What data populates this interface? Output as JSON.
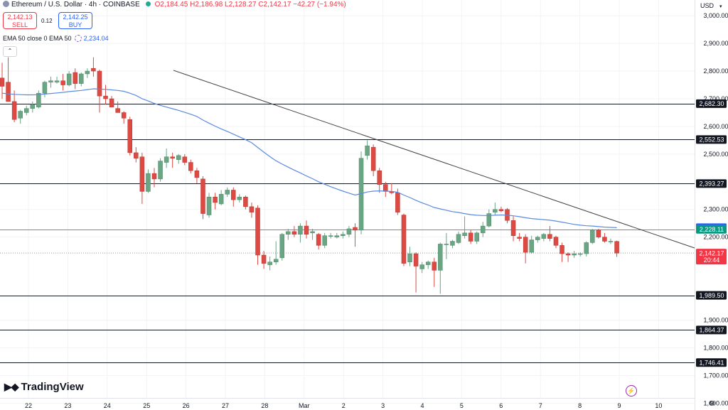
{
  "header": {
    "symbol": "Ethereum / U.S. Dollar · 4h · COINBASE",
    "ohlc": "O2,184.45 H2,186.98 L2,128.27 C2,142.17 −42.27 (−1.94%)"
  },
  "trade": {
    "sell_price": "2,142.13",
    "sell_label": "SELL",
    "spread": "0.12",
    "buy_price": "2,142.25",
    "buy_label": "BUY"
  },
  "indicator": {
    "label": "EMA 50 close 0 EMA 50",
    "value": "2,234.04"
  },
  "collapse_glyph": "⌃",
  "currency": "USD",
  "logo_text": "TradingView",
  "colors": {
    "up": "#6aa584",
    "down": "#dc4a43",
    "ema": "#5b8be0",
    "trend": "#444444",
    "green_line": "#4caf50",
    "level": "#131722"
  },
  "chart_data": {
    "type": "candlestick",
    "symbol": "ETHUSD",
    "timeframe": "4h",
    "x_labels": [
      "22",
      "23",
      "24",
      "25",
      "26",
      "27",
      "28",
      "Mar",
      "2",
      "3",
      "4",
      "5",
      "6",
      "7",
      "8",
      "9",
      "10"
    ],
    "y_ticks": [
      "3,000.00",
      "2,900.00",
      "2,800.00",
      "2,700.00",
      "2,600.00",
      "2,500.00",
      "2,300.00",
      "2,200.00",
      "1,900.00",
      "1,800.00",
      "1,700.00",
      "1,600.00"
    ],
    "ylim": [
      1575,
      3057
    ],
    "candles": [
      {
        "o": 2775,
        "h": 2830,
        "l": 2700,
        "c": 2745
      },
      {
        "o": 2760,
        "h": 2850,
        "l": 2690,
        "c": 2690
      },
      {
        "o": 2690,
        "h": 2730,
        "l": 2615,
        "c": 2625
      },
      {
        "o": 2630,
        "h": 2660,
        "l": 2610,
        "c": 2655
      },
      {
        "o": 2650,
        "h": 2675,
        "l": 2640,
        "c": 2665
      },
      {
        "o": 2665,
        "h": 2690,
        "l": 2650,
        "c": 2680
      },
      {
        "o": 2670,
        "h": 2730,
        "l": 2665,
        "c": 2720
      },
      {
        "o": 2720,
        "h": 2765,
        "l": 2705,
        "c": 2760
      },
      {
        "o": 2760,
        "h": 2780,
        "l": 2740,
        "c": 2765
      },
      {
        "o": 2760,
        "h": 2780,
        "l": 2755,
        "c": 2765
      },
      {
        "o": 2765,
        "h": 2790,
        "l": 2730,
        "c": 2750
      },
      {
        "o": 2750,
        "h": 2800,
        "l": 2745,
        "c": 2790
      },
      {
        "o": 2795,
        "h": 2810,
        "l": 2735,
        "c": 2755
      },
      {
        "o": 2755,
        "h": 2795,
        "l": 2745,
        "c": 2790
      },
      {
        "o": 2790,
        "h": 2810,
        "l": 2775,
        "c": 2800
      },
      {
        "o": 2810,
        "h": 2850,
        "l": 2780,
        "c": 2800
      },
      {
        "o": 2800,
        "h": 2805,
        "l": 2650,
        "c": 2710
      },
      {
        "o": 2710,
        "h": 2750,
        "l": 2680,
        "c": 2700
      },
      {
        "o": 2700,
        "h": 2710,
        "l": 2670,
        "c": 2670
      },
      {
        "o": 2665,
        "h": 2690,
        "l": 2650,
        "c": 2650
      },
      {
        "o": 2650,
        "h": 2655,
        "l": 2610,
        "c": 2630
      },
      {
        "o": 2625,
        "h": 2635,
        "l": 2495,
        "c": 2505
      },
      {
        "o": 2505,
        "h": 2525,
        "l": 2470,
        "c": 2485
      },
      {
        "o": 2490,
        "h": 2505,
        "l": 2320,
        "c": 2365
      },
      {
        "o": 2365,
        "h": 2445,
        "l": 2360,
        "c": 2430
      },
      {
        "o": 2430,
        "h": 2450,
        "l": 2380,
        "c": 2410
      },
      {
        "o": 2410,
        "h": 2485,
        "l": 2400,
        "c": 2475
      },
      {
        "o": 2470,
        "h": 2520,
        "l": 2450,
        "c": 2490
      },
      {
        "o": 2490,
        "h": 2505,
        "l": 2450,
        "c": 2485
      },
      {
        "o": 2480,
        "h": 2500,
        "l": 2465,
        "c": 2495
      },
      {
        "o": 2490,
        "h": 2500,
        "l": 2460,
        "c": 2470
      },
      {
        "o": 2470,
        "h": 2480,
        "l": 2430,
        "c": 2440
      },
      {
        "o": 2440,
        "h": 2450,
        "l": 2395,
        "c": 2415
      },
      {
        "o": 2410,
        "h": 2420,
        "l": 2265,
        "c": 2285
      },
      {
        "o": 2280,
        "h": 2360,
        "l": 2270,
        "c": 2345
      },
      {
        "o": 2345,
        "h": 2360,
        "l": 2300,
        "c": 2325
      },
      {
        "o": 2320,
        "h": 2370,
        "l": 2315,
        "c": 2355
      },
      {
        "o": 2355,
        "h": 2380,
        "l": 2345,
        "c": 2370
      },
      {
        "o": 2370,
        "h": 2380,
        "l": 2310,
        "c": 2335
      },
      {
        "o": 2335,
        "h": 2355,
        "l": 2325,
        "c": 2345
      },
      {
        "o": 2345,
        "h": 2350,
        "l": 2300,
        "c": 2310
      },
      {
        "o": 2310,
        "h": 2325,
        "l": 2270,
        "c": 2290
      },
      {
        "o": 2305,
        "h": 2315,
        "l": 2100,
        "c": 2135
      },
      {
        "o": 2135,
        "h": 2150,
        "l": 2085,
        "c": 2105
      },
      {
        "o": 2100,
        "h": 2130,
        "l": 2080,
        "c": 2110
      },
      {
        "o": 2110,
        "h": 2185,
        "l": 2100,
        "c": 2120
      },
      {
        "o": 2125,
        "h": 2215,
        "l": 2115,
        "c": 2210
      },
      {
        "o": 2210,
        "h": 2230,
        "l": 2190,
        "c": 2220
      },
      {
        "o": 2220,
        "h": 2240,
        "l": 2200,
        "c": 2210
      },
      {
        "o": 2210,
        "h": 2250,
        "l": 2180,
        "c": 2240
      },
      {
        "o": 2240,
        "h": 2260,
        "l": 2195,
        "c": 2210
      },
      {
        "o": 2215,
        "h": 2230,
        "l": 2190,
        "c": 2220
      },
      {
        "o": 2210,
        "h": 2215,
        "l": 2155,
        "c": 2170
      },
      {
        "o": 2170,
        "h": 2215,
        "l": 2160,
        "c": 2205
      },
      {
        "o": 2205,
        "h": 2215,
        "l": 2195,
        "c": 2205
      },
      {
        "o": 2200,
        "h": 2215,
        "l": 2195,
        "c": 2205
      },
      {
        "o": 2205,
        "h": 2220,
        "l": 2195,
        "c": 2210
      },
      {
        "o": 2210,
        "h": 2240,
        "l": 2200,
        "c": 2230
      },
      {
        "o": 2235,
        "h": 2250,
        "l": 2165,
        "c": 2225
      },
      {
        "o": 2225,
        "h": 2510,
        "l": 2210,
        "c": 2485
      },
      {
        "o": 2495,
        "h": 2550,
        "l": 2480,
        "c": 2530
      },
      {
        "o": 2525,
        "h": 2535,
        "l": 2420,
        "c": 2440
      },
      {
        "o": 2440,
        "h": 2450,
        "l": 2360,
        "c": 2390
      },
      {
        "o": 2390,
        "h": 2400,
        "l": 2345,
        "c": 2365
      },
      {
        "o": 2365,
        "h": 2395,
        "l": 2355,
        "c": 2360
      },
      {
        "o": 2360,
        "h": 2375,
        "l": 2280,
        "c": 2290
      },
      {
        "o": 2280,
        "h": 2285,
        "l": 2095,
        "c": 2105
      },
      {
        "o": 2110,
        "h": 2165,
        "l": 2095,
        "c": 2140
      },
      {
        "o": 2140,
        "h": 2145,
        "l": 2000,
        "c": 2095
      },
      {
        "o": 2085,
        "h": 2110,
        "l": 2070,
        "c": 2100
      },
      {
        "o": 2100,
        "h": 2115,
        "l": 2085,
        "c": 2110
      },
      {
        "o": 2110,
        "h": 2125,
        "l": 2020,
        "c": 2080
      },
      {
        "o": 2080,
        "h": 2180,
        "l": 1995,
        "c": 2175
      },
      {
        "o": 2175,
        "h": 2215,
        "l": 2120,
        "c": 2175
      },
      {
        "o": 2170,
        "h": 2190,
        "l": 2160,
        "c": 2185
      },
      {
        "o": 2180,
        "h": 2220,
        "l": 2175,
        "c": 2210
      },
      {
        "o": 2205,
        "h": 2275,
        "l": 2195,
        "c": 2215
      },
      {
        "o": 2215,
        "h": 2225,
        "l": 2175,
        "c": 2185
      },
      {
        "o": 2185,
        "h": 2220,
        "l": 2175,
        "c": 2215
      },
      {
        "o": 2215,
        "h": 2255,
        "l": 2200,
        "c": 2240
      },
      {
        "o": 2240,
        "h": 2300,
        "l": 2235,
        "c": 2285
      },
      {
        "o": 2290,
        "h": 2325,
        "l": 2280,
        "c": 2300
      },
      {
        "o": 2300,
        "h": 2310,
        "l": 2290,
        "c": 2295
      },
      {
        "o": 2300,
        "h": 2305,
        "l": 2250,
        "c": 2260
      },
      {
        "o": 2260,
        "h": 2275,
        "l": 2185,
        "c": 2205
      },
      {
        "o": 2200,
        "h": 2215,
        "l": 2185,
        "c": 2195
      },
      {
        "o": 2200,
        "h": 2210,
        "l": 2105,
        "c": 2145
      },
      {
        "o": 2145,
        "h": 2205,
        "l": 2140,
        "c": 2190
      },
      {
        "o": 2190,
        "h": 2205,
        "l": 2180,
        "c": 2200
      },
      {
        "o": 2195,
        "h": 2215,
        "l": 2185,
        "c": 2210
      },
      {
        "o": 2210,
        "h": 2240,
        "l": 2185,
        "c": 2195
      },
      {
        "o": 2200,
        "h": 2205,
        "l": 2160,
        "c": 2170
      },
      {
        "o": 2170,
        "h": 2180,
        "l": 2110,
        "c": 2140
      },
      {
        "o": 2140,
        "h": 2145,
        "l": 2110,
        "c": 2135
      },
      {
        "o": 2135,
        "h": 2150,
        "l": 2125,
        "c": 2140
      },
      {
        "o": 2140,
        "h": 2145,
        "l": 2130,
        "c": 2140
      },
      {
        "o": 2140,
        "h": 2185,
        "l": 2130,
        "c": 2180
      },
      {
        "o": 2180,
        "h": 2230,
        "l": 2175,
        "c": 2225
      },
      {
        "o": 2225,
        "h": 2230,
        "l": 2195,
        "c": 2200
      },
      {
        "o": 2200,
        "h": 2215,
        "l": 2180,
        "c": 2185
      },
      {
        "o": 2185,
        "h": 2195,
        "l": 2175,
        "c": 2185
      },
      {
        "o": 2184.45,
        "h": 2186.98,
        "l": 2128.27,
        "c": 2142.17
      }
    ],
    "ema50": [
      2720,
      2718,
      2716,
      2715,
      2714,
      2714,
      2715,
      2717,
      2719,
      2721,
      2723,
      2726,
      2728,
      2730,
      2733,
      2736,
      2735,
      2734,
      2732,
      2730,
      2727,
      2720,
      2712,
      2700,
      2692,
      2683,
      2676,
      2670,
      2664,
      2658,
      2651,
      2644,
      2636,
      2623,
      2612,
      2601,
      2591,
      2582,
      2572,
      2562,
      2552,
      2541,
      2524,
      2507,
      2491,
      2476,
      2464,
      2453,
      2442,
      2432,
      2421,
      2411,
      2400,
      2391,
      2382,
      2374,
      2366,
      2359,
      2352,
      2357,
      2363,
      2366,
      2367,
      2366,
      2365,
      2362,
      2352,
      2343,
      2333,
      2324,
      2316,
      2307,
      2302,
      2297,
      2292,
      2289,
      2285,
      2281,
      2279,
      2278,
      2278,
      2279,
      2280,
      2279,
      2277,
      2274,
      2270,
      2267,
      2265,
      2263,
      2261,
      2258,
      2254,
      2250,
      2246,
      2243,
      2241,
      2240,
      2238,
      2236,
      2235,
      2234.04
    ],
    "levels": [
      {
        "label": "2,682.30",
        "value": 2682.3
      },
      {
        "label": "2,552.53",
        "value": 2552.53
      },
      {
        "label": "2,393.27",
        "value": 2393.27
      },
      {
        "label": "1,989.50",
        "value": 1989.5
      },
      {
        "label": "1,864.37",
        "value": 1864.37
      },
      {
        "label": "1,746.41",
        "value": 1746.41
      }
    ],
    "green_line": {
      "label": "2,228.11",
      "value": 2228.11
    },
    "ema_tag": {
      "label": "2,234.04",
      "value": 2234.04
    },
    "last_price": {
      "label": "2,142.17",
      "value": 2142.17,
      "countdown": "20:44"
    },
    "trendline": [
      [
        2786,
        2800
      ],
      [
        2540,
        2557
      ],
      [
        2225,
        2145
      ]
    ]
  }
}
